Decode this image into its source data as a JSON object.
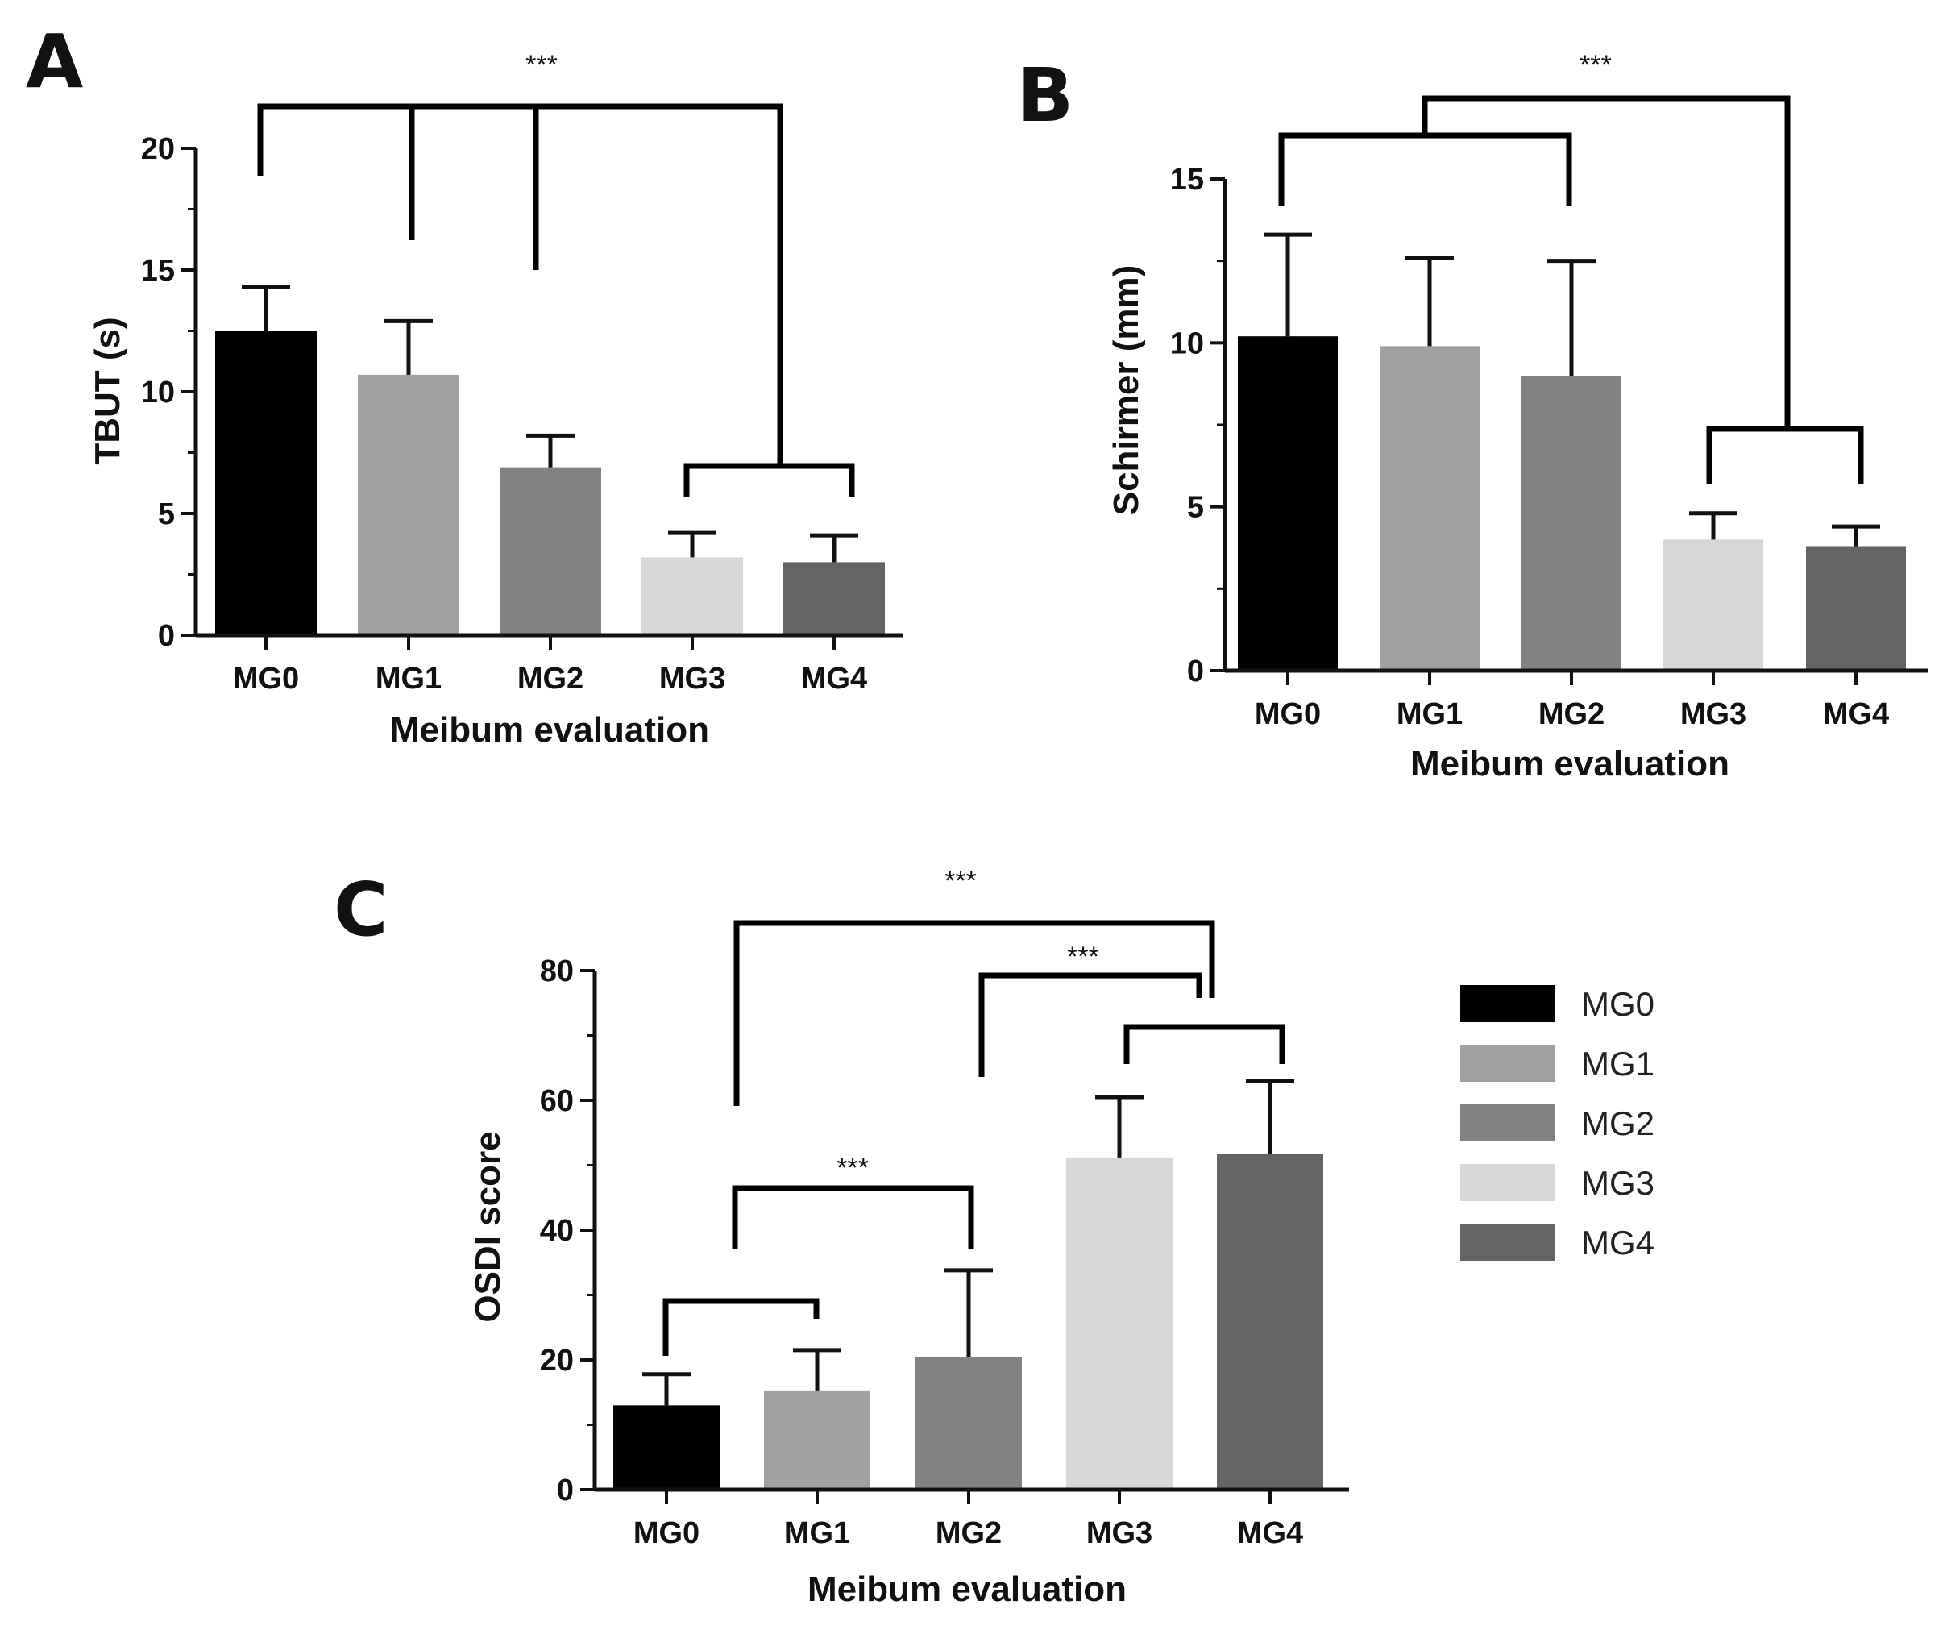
{
  "colors": {
    "MG0": "#000000",
    "MG1": "#a1a1a1",
    "MG2": "#828282",
    "MG3": "#d7d7d7",
    "MG4": "#646464"
  },
  "legend": {
    "items": [
      "MG0",
      "MG1",
      "MG2",
      "MG3",
      "MG4"
    ]
  },
  "chart_data": [
    {
      "panel": "A",
      "type": "bar",
      "categories": [
        "MG0",
        "MG1",
        "MG2",
        "MG3",
        "MG4"
      ],
      "values": [
        12.5,
        10.7,
        6.9,
        3.2,
        3.0
      ],
      "errors": [
        1.8,
        2.2,
        1.3,
        1.0,
        1.1
      ],
      "xlabel": "Meibum evaluation",
      "ylabel": "TBUT (s)",
      "ylim": [
        0,
        20
      ],
      "yticks": [
        0,
        5,
        10,
        15,
        20
      ],
      "significance": [
        {
          "groups": [
            "MG0",
            "MG1",
            "MG2",
            "MG3-MG4"
          ],
          "label": "***"
        },
        {
          "groups": [
            "MG3",
            "MG4"
          ],
          "label": ""
        }
      ]
    },
    {
      "panel": "B",
      "type": "bar",
      "categories": [
        "MG0",
        "MG1",
        "MG2",
        "MG3",
        "MG4"
      ],
      "values": [
        10.2,
        9.9,
        9.0,
        4.0,
        3.8
      ],
      "errors": [
        3.1,
        2.7,
        3.5,
        0.8,
        0.6
      ],
      "xlabel": "Meibum evaluation",
      "ylabel": "Schirmer (mm)",
      "ylim": [
        0,
        15
      ],
      "yticks": [
        0,
        5,
        10,
        15
      ],
      "significance": [
        {
          "groups": [
            "MG0-MG2",
            "MG3-MG4"
          ],
          "label": "***"
        },
        {
          "groups": [
            "MG0",
            "MG2"
          ],
          "label": ""
        },
        {
          "groups": [
            "MG3",
            "MG4"
          ],
          "label": ""
        }
      ]
    },
    {
      "panel": "C",
      "type": "bar",
      "categories": [
        "MG0",
        "MG1",
        "MG2",
        "MG3",
        "MG4"
      ],
      "values": [
        13.0,
        15.3,
        20.5,
        51.2,
        51.8
      ],
      "errors": [
        4.8,
        6.2,
        13.3,
        9.3,
        11.2
      ],
      "xlabel": "Meibum evaluation",
      "ylabel": "OSDI score",
      "ylim": [
        0,
        80
      ],
      "yticks": [
        0,
        20,
        40,
        60,
        80
      ],
      "significance": [
        {
          "groups": [
            "MG0",
            "MG3-MG4"
          ],
          "label": "***"
        },
        {
          "groups": [
            "MG2",
            "MG3-MG4"
          ],
          "label": "***"
        },
        {
          "groups": [
            "MG3",
            "MG4"
          ],
          "label": ""
        },
        {
          "groups": [
            "MG0",
            "MG2"
          ],
          "label": "***"
        },
        {
          "groups": [
            "MG0",
            "MG1"
          ],
          "label": ""
        }
      ]
    }
  ]
}
